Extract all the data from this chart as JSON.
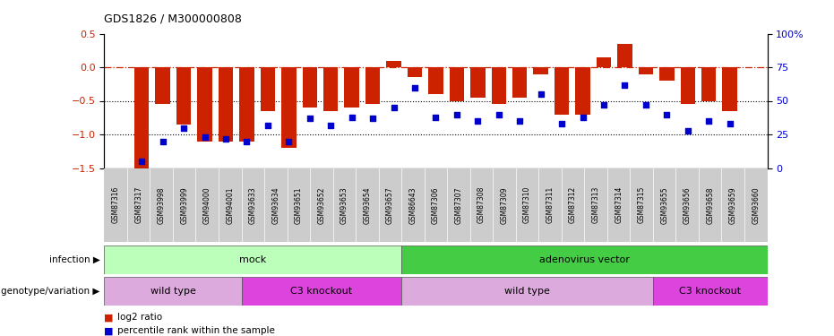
{
  "title": "GDS1826 / M300000808",
  "samples": [
    "GSM87316",
    "GSM87317",
    "GSM93998",
    "GSM93999",
    "GSM94000",
    "GSM94001",
    "GSM93633",
    "GSM93634",
    "GSM93651",
    "GSM93652",
    "GSM93653",
    "GSM93654",
    "GSM93657",
    "GSM86643",
    "GSM87306",
    "GSM87307",
    "GSM87308",
    "GSM87309",
    "GSM87310",
    "GSM87311",
    "GSM87312",
    "GSM87313",
    "GSM87314",
    "GSM87315",
    "GSM93655",
    "GSM93656",
    "GSM93658",
    "GSM93659",
    "GSM93660"
  ],
  "log2_ratio": [
    -1.5,
    -0.55,
    -0.85,
    -1.1,
    -1.1,
    -1.1,
    -0.65,
    -1.2,
    -0.6,
    -0.65,
    -0.6,
    -0.55,
    0.1,
    -0.15,
    -0.4,
    -0.5,
    -0.45,
    -0.55,
    -0.45,
    -0.1,
    -0.7,
    -0.7,
    0.15,
    0.35,
    -0.1,
    -0.2,
    -0.55,
    -0.5,
    -0.65
  ],
  "percentile": [
    5,
    20,
    30,
    23,
    22,
    20,
    32,
    20,
    37,
    32,
    38,
    37,
    45,
    60,
    38,
    40,
    35,
    40,
    35,
    55,
    33,
    38,
    47,
    62,
    47,
    40,
    28,
    35,
    33
  ],
  "ylim_left": [
    -1.5,
    0.5
  ],
  "ylim_right": [
    0,
    100
  ],
  "bar_color": "#cc2200",
  "dot_color": "#0000cc",
  "dotline_yticks": [
    -0.5,
    -1.0
  ],
  "infection_groups": [
    {
      "label": "mock",
      "start": 0,
      "end": 13,
      "color": "#bbffbb"
    },
    {
      "label": "adenovirus vector",
      "start": 13,
      "end": 29,
      "color": "#44cc44"
    }
  ],
  "genotype_groups": [
    {
      "label": "wild type",
      "start": 0,
      "end": 6,
      "color": "#ddaadd"
    },
    {
      "label": "C3 knockout",
      "start": 6,
      "end": 13,
      "color": "#dd44dd"
    },
    {
      "label": "wild type",
      "start": 13,
      "end": 24,
      "color": "#ddaadd"
    },
    {
      "label": "C3 knockout",
      "start": 24,
      "end": 29,
      "color": "#dd44dd"
    }
  ]
}
